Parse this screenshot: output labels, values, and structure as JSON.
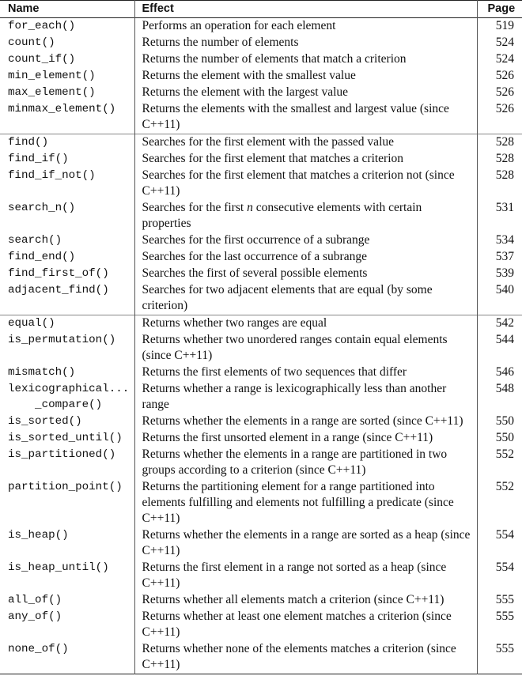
{
  "headers": {
    "name": "Name",
    "effect": "Effect",
    "page": "Page"
  },
  "rows": [
    {
      "name": "for_each()",
      "effect": "Performs an operation for each element",
      "page": "519"
    },
    {
      "name": "count()",
      "effect": "Returns the number of elements",
      "page": "524"
    },
    {
      "name": "count_if()",
      "effect": "Returns the number of elements that match a criterion",
      "page": "524"
    },
    {
      "name": "min_element()",
      "effect": "Returns the element with the smallest value",
      "page": "526"
    },
    {
      "name": "max_element()",
      "effect": "Returns the element with the largest value",
      "page": "526"
    },
    {
      "name": "minmax_element()",
      "effect": "Returns the elements with the smallest and largest value (since C++11)",
      "page": "526"
    },
    {
      "name": "find()",
      "effect": "Searches for the first element with the passed value",
      "page": "528"
    },
    {
      "name": "find_if()",
      "effect": "Searches for the first element that matches a criterion",
      "page": "528"
    },
    {
      "name": "find_if_not()",
      "effect": "Searches for the first element that matches a criterion not (since C++11)",
      "page": "528"
    },
    {
      "name": "search_n()",
      "effect_pre": "Searches for the first ",
      "effect_em": "n",
      "effect_post": " consecutive elements with certain properties",
      "page": "531"
    },
    {
      "name": "search()",
      "effect": "Searches for the first occurrence of a subrange",
      "page": "534"
    },
    {
      "name": "find_end()",
      "effect": "Searches for the last occurrence of a subrange",
      "page": "537"
    },
    {
      "name": "find_first_of()",
      "effect": "Searches the first of several possible elements",
      "page": "539"
    },
    {
      "name": "adjacent_find()",
      "effect": "Searches for two adjacent elements that are equal (by some criterion)",
      "page": "540"
    },
    {
      "name": "equal()",
      "effect": "Returns whether two ranges are equal",
      "page": "542"
    },
    {
      "name": "is_permutation()",
      "effect": "Returns whether two unordered ranges contain equal elements (since C++11)",
      "page": "544"
    },
    {
      "name": "mismatch()",
      "effect": "Returns the first elements of two sequences that differ",
      "page": "546"
    },
    {
      "name": "lexicographical...\n    _compare()",
      "effect": "Returns whether a range is lexicographically less than another range",
      "page": "548"
    },
    {
      "name": "is_sorted()",
      "effect": "Returns whether the elements in a range are sorted (since C++11)",
      "page": "550"
    },
    {
      "name": "is_sorted_until()",
      "effect": "Returns the first unsorted element in a range (since C++11)",
      "page": "550"
    },
    {
      "name": "is_partitioned()",
      "effect": "Returns whether the elements in a range are partitioned in two groups according to a criterion (since C++11)",
      "page": "552"
    },
    {
      "name": "partition_point()",
      "effect": "Returns the partitioning element for a range partitioned into elements fulfilling and elements not fulfilling a predicate (since C++11)",
      "page": "552"
    },
    {
      "name": "is_heap()",
      "effect": "Returns whether the elements in a range are sorted as a heap (since C++11)",
      "page": "554"
    },
    {
      "name": "is_heap_until()",
      "effect": "Returns the first element in a range not sorted as a heap (since C++11)",
      "page": "554"
    },
    {
      "name": "all_of()",
      "effect": "Returns whether all elements match a criterion (since C++11)",
      "page": "555"
    },
    {
      "name": "any_of()",
      "effect": "Returns whether at least one element matches a criterion (since C++11)",
      "page": "555"
    },
    {
      "name": "none_of()",
      "effect": "Returns whether none of the elements matches a criterion (since C++11)",
      "page": "555"
    }
  ]
}
